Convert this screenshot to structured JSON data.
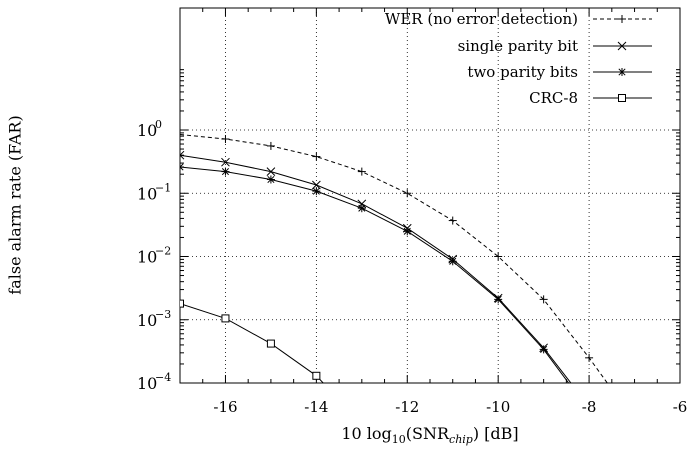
{
  "chart_data": {
    "type": "line",
    "xlabel": "10 log10(SNRchip) [dB]",
    "xlabel_parts": {
      "prefix": "10 log",
      "base": "10",
      "mid": "(SNR",
      "sub": "chip",
      "suffix": ") [dB]"
    },
    "ylabel": "false alarm rate (FAR)",
    "xlim": [
      -17,
      -6
    ],
    "ylim": [
      0.0001,
      1.0
    ],
    "yscale": "log",
    "grid": true,
    "legend_position": "top-right",
    "x_ticks": [
      -16,
      -14,
      -12,
      -10,
      -8,
      -6
    ],
    "x_tick_labels": [
      "-16",
      "-14",
      "-12",
      "-10",
      "-8",
      "-6"
    ],
    "y_ticks": [
      {
        "value": 1,
        "base": "10",
        "exp": "0"
      },
      {
        "value": 0.1,
        "base": "10",
        "exp": "−1"
      },
      {
        "value": 0.01,
        "base": "10",
        "exp": "−2"
      },
      {
        "value": 0.001,
        "base": "10",
        "exp": "−3"
      },
      {
        "value": 0.0001,
        "base": "10",
        "exp": "−4"
      }
    ],
    "series": [
      {
        "name": "WER (no error detection)",
        "style": "dashed",
        "marker": "plus",
        "curve": [
          [
            -17,
            0.85
          ],
          [
            -16,
            0.72
          ],
          [
            -15,
            0.56
          ],
          [
            -14,
            0.38
          ],
          [
            -13,
            0.22
          ],
          [
            -12,
            0.1
          ],
          [
            -11,
            0.037
          ],
          [
            -10,
            0.01
          ],
          [
            -9,
            0.0021
          ],
          [
            -8,
            0.00025
          ],
          [
            -7.6,
            0.0001
          ]
        ],
        "markers": [
          [
            -16,
            0.72
          ],
          [
            -15,
            0.56
          ],
          [
            -14,
            0.38
          ],
          [
            -13,
            0.22
          ],
          [
            -12,
            0.1
          ],
          [
            -11,
            0.037
          ],
          [
            -10,
            0.01
          ],
          [
            -9,
            0.0021
          ],
          [
            -8,
            0.00025
          ]
        ]
      },
      {
        "name": "single parity bit",
        "style": "solid",
        "marker": "x",
        "curve": [
          [
            -17,
            0.4
          ],
          [
            -16,
            0.31
          ],
          [
            -15,
            0.22
          ],
          [
            -14,
            0.135
          ],
          [
            -13,
            0.068
          ],
          [
            -12,
            0.028
          ],
          [
            -11,
            0.0091
          ],
          [
            -10,
            0.0022
          ],
          [
            -9,
            0.00036
          ],
          [
            -8.4,
            0.0001
          ]
        ],
        "markers": [
          [
            -17,
            0.4
          ],
          [
            -16,
            0.31
          ],
          [
            -15,
            0.22
          ],
          [
            -14,
            0.135
          ],
          [
            -13,
            0.068
          ],
          [
            -12,
            0.028
          ],
          [
            -11,
            0.0091
          ],
          [
            -10,
            0.0022
          ],
          [
            -9,
            0.00036
          ]
        ]
      },
      {
        "name": "two parity bits",
        "style": "solid",
        "marker": "star",
        "curve": [
          [
            -17,
            0.26
          ],
          [
            -16,
            0.22
          ],
          [
            -15,
            0.165
          ],
          [
            -14,
            0.108
          ],
          [
            -13,
            0.058
          ],
          [
            -12,
            0.025
          ],
          [
            -11,
            0.0084
          ],
          [
            -10,
            0.0021
          ],
          [
            -9,
            0.00034
          ],
          [
            -8.45,
            0.0001
          ]
        ],
        "markers": [
          [
            -17,
            0.26
          ],
          [
            -16,
            0.22
          ],
          [
            -15,
            0.165
          ],
          [
            -14,
            0.108
          ],
          [
            -13,
            0.058
          ],
          [
            -12,
            0.025
          ],
          [
            -11,
            0.0084
          ],
          [
            -10,
            0.0021
          ],
          [
            -9,
            0.00034
          ]
        ]
      },
      {
        "name": "CRC-8",
        "style": "solid",
        "marker": "square",
        "curve": [
          [
            -17,
            0.0018
          ],
          [
            -16,
            0.00105
          ],
          [
            -15,
            0.00042
          ],
          [
            -14,
            0.00013
          ],
          [
            -13.85,
            0.0001
          ]
        ],
        "markers": [
          [
            -17,
            0.0018
          ],
          [
            -16,
            0.00105
          ],
          [
            -15,
            0.00042
          ],
          [
            -14,
            0.00013
          ]
        ]
      }
    ]
  }
}
